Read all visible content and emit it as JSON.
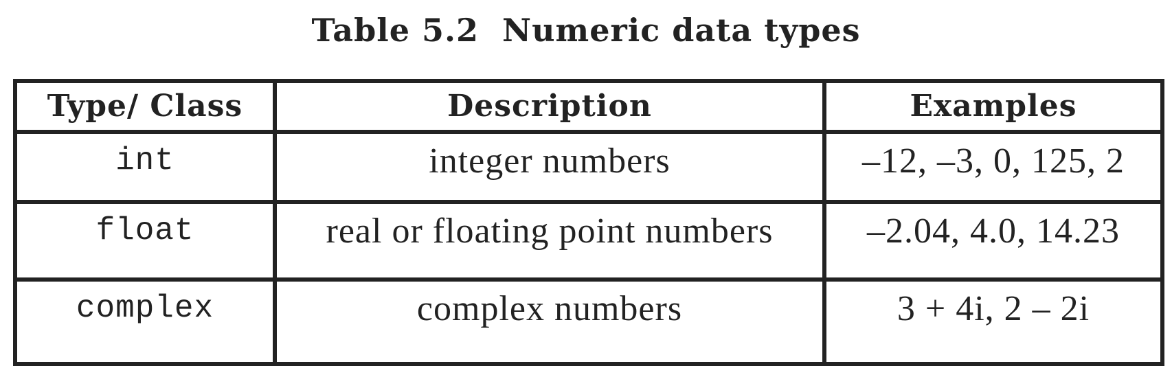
{
  "caption": "Table 5.2  Numeric data types",
  "table": {
    "headers": [
      "Type/ Class",
      "Description",
      "Examples"
    ],
    "rows": [
      {
        "type": "int",
        "description": "integer numbers",
        "examples": "–12, –3, 0, 125, 2"
      },
      {
        "type": "float",
        "description": "real or floating point numbers",
        "examples": "–2.04, 4.0, 14.23"
      },
      {
        "type": "complex",
        "description": "complex numbers",
        "examples": "3 + 4i, 2 – 2i"
      }
    ]
  }
}
